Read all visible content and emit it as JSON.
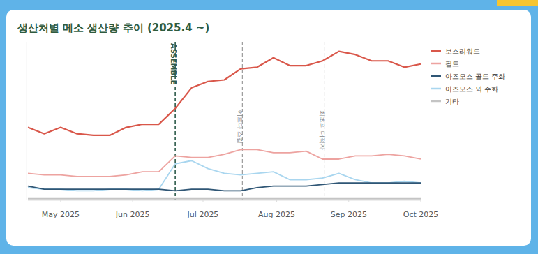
{
  "chart_data": {
    "type": "line",
    "title": "생산처별 메소 생산량 추이 (2025.4 ~)",
    "x": [
      0,
      1,
      2,
      3,
      4,
      5,
      6,
      7,
      8,
      9,
      10,
      11,
      12,
      13,
      14,
      15,
      16,
      17,
      18,
      19,
      20,
      21,
      22,
      23,
      24
    ],
    "xlim": [
      0,
      24
    ],
    "xticks": [
      {
        "value": 2,
        "label": "May 2025"
      },
      {
        "value": 6.4,
        "label": "Jun 2025"
      },
      {
        "value": 10.7,
        "label": "Jul 2025"
      },
      {
        "value": 15.2,
        "label": "Aug 2025"
      },
      {
        "value": 19.6,
        "label": "Sep 2025"
      },
      {
        "value": 24,
        "label": "Oct 2025"
      }
    ],
    "ylim": [
      0,
      100
    ],
    "tick_labels": "x",
    "grid": false,
    "legend": "right",
    "series": [
      {
        "name": "보스리워드",
        "color": "#d9574a",
        "values": [
          46,
          42,
          46,
          42,
          41,
          41,
          46,
          48,
          48,
          58,
          71,
          75,
          76,
          83,
          84,
          90,
          85,
          85,
          88,
          94,
          92,
          88,
          88,
          84,
          86
        ]
      },
      {
        "name": "필드",
        "color": "#eda3a0",
        "values": [
          17,
          16,
          16,
          15,
          15,
          15,
          16,
          18,
          18,
          28,
          27,
          27,
          29,
          32,
          32,
          30,
          30,
          31,
          26,
          26,
          28,
          28,
          29,
          28,
          26
        ]
      },
      {
        "name": "아즈모스 골드 주화",
        "color": "#2f5675",
        "values": [
          9,
          7,
          7,
          7,
          7,
          7,
          7,
          7,
          7,
          6,
          7,
          7,
          6,
          6,
          8,
          9,
          9,
          9,
          10,
          11,
          11,
          11,
          11,
          11,
          11
        ]
      },
      {
        "name": "아즈모스 외 주화",
        "color": "#a9d6ef",
        "values": [
          8,
          7,
          7,
          6,
          6,
          7,
          7,
          6,
          7,
          23,
          25,
          20,
          17,
          16,
          17,
          18,
          13,
          13,
          14,
          17,
          13,
          11,
          11,
          12,
          11
        ]
      },
      {
        "name": "기타",
        "color": "#c4c4c4",
        "values": [
          1,
          1,
          1,
          1,
          1,
          1,
          1,
          1,
          1,
          1,
          1,
          1,
          1,
          1,
          1,
          1,
          1,
          1,
          1,
          1,
          1,
          1,
          1,
          1,
          1
        ]
      }
    ],
    "annotations": [
      {
        "x": 9,
        "label": "ASSEMBLE",
        "color": "#2d5a4a"
      },
      {
        "x": 13.1,
        "label": "에르다 스킬",
        "color": "#888888"
      },
      {
        "x": 18.1,
        "label": "최초의 대적자",
        "color": "#888888"
      }
    ]
  }
}
